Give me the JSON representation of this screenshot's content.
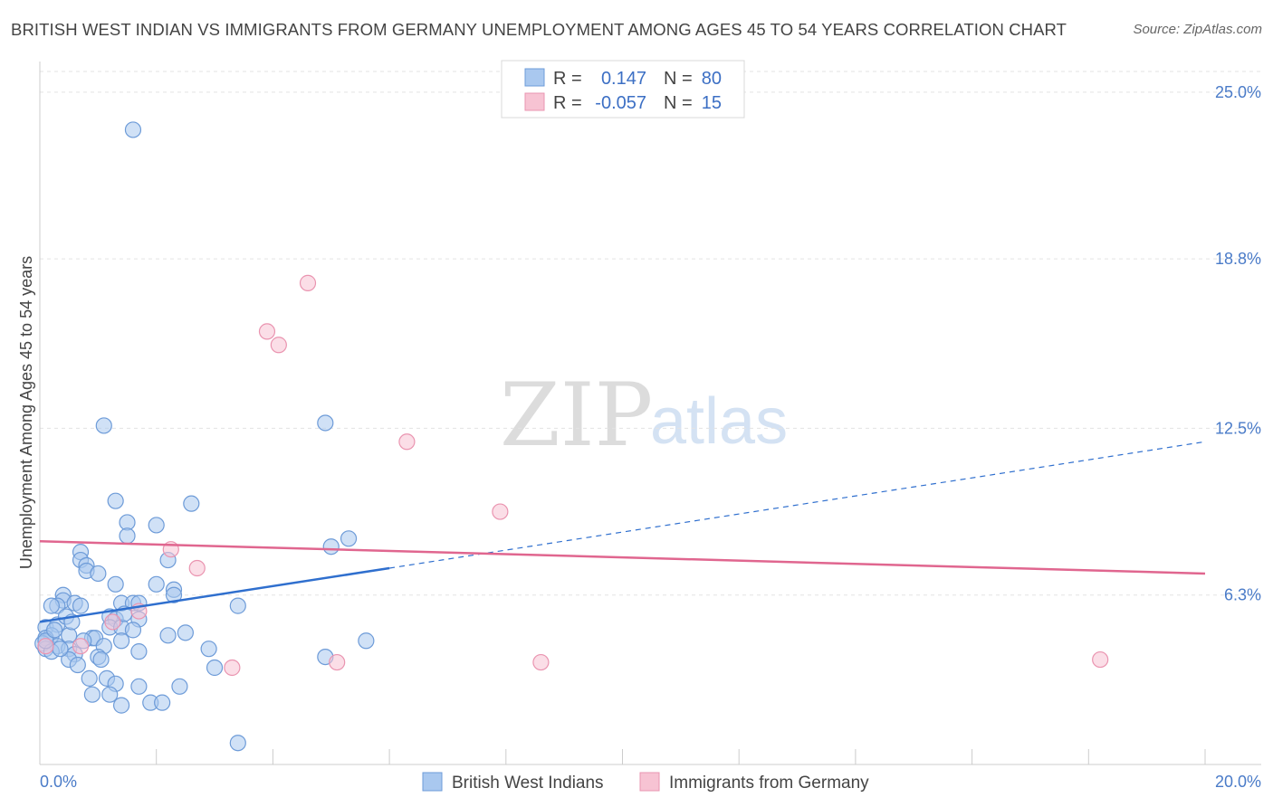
{
  "header": {
    "title": "BRITISH WEST INDIAN VS IMMIGRANTS FROM GERMANY UNEMPLOYMENT AMONG AGES 45 TO 54 YEARS CORRELATION CHART",
    "source": "Source: ZipAtlas.com"
  },
  "watermark": {
    "zip": "ZIP",
    "atlas": "atlas"
  },
  "legend": {
    "rows": [
      {
        "r_label": "R =",
        "r_value": "0.147",
        "n_label": "N =",
        "n_value": "80"
      },
      {
        "r_label": "R =",
        "r_value": "-0.057",
        "n_label": "N =",
        "n_value": "15"
      }
    ]
  },
  "chart_data": {
    "type": "scatter",
    "title": "BRITISH WEST INDIAN VS IMMIGRANTS FROM GERMANY UNEMPLOYMENT AMONG AGES 45 TO 54 YEARS CORRELATION CHART",
    "xlabel": "",
    "ylabel": "Unemployment Among Ages 45 to 54 years",
    "xlim": [
      0,
      20
    ],
    "ylim": [
      0,
      25.6
    ],
    "x_tick_labels": [
      "0.0%",
      "20.0%"
    ],
    "y_ticks": [
      6.3,
      12.5,
      18.8,
      25.0
    ],
    "y_tick_labels": [
      "6.3%",
      "12.5%",
      "18.8%",
      "25.0%"
    ],
    "grid": true,
    "legend_position": "bottom",
    "colors": {
      "blue_fill": "#a9c8ef",
      "blue_stroke": "#6d9bd8",
      "blue_line": "#2f6fce",
      "pink_fill": "#f7c3d3",
      "pink_stroke": "#ea94b0",
      "pink_line": "#e0668f"
    },
    "series": [
      {
        "name": "British West Indians",
        "color": "blue",
        "points": [
          [
            1.6,
            23.6
          ],
          [
            1.1,
            12.6
          ],
          [
            4.9,
            12.7
          ],
          [
            1.3,
            9.8
          ],
          [
            2.6,
            9.7
          ],
          [
            1.5,
            9.0
          ],
          [
            2.0,
            8.9
          ],
          [
            1.5,
            8.5
          ],
          [
            5.3,
            8.4
          ],
          [
            5.0,
            8.1
          ],
          [
            0.7,
            7.9
          ],
          [
            0.7,
            7.6
          ],
          [
            0.8,
            7.4
          ],
          [
            0.8,
            7.2
          ],
          [
            1.0,
            7.1
          ],
          [
            2.2,
            7.6
          ],
          [
            1.3,
            6.7
          ],
          [
            2.0,
            6.7
          ],
          [
            2.3,
            6.5
          ],
          [
            2.3,
            6.3
          ],
          [
            0.4,
            6.3
          ],
          [
            0.4,
            6.1
          ],
          [
            0.6,
            6.0
          ],
          [
            0.3,
            5.9
          ],
          [
            0.7,
            5.9
          ],
          [
            0.2,
            5.9
          ],
          [
            1.4,
            6.0
          ],
          [
            1.6,
            6.0
          ],
          [
            1.7,
            6.0
          ],
          [
            3.4,
            5.9
          ],
          [
            1.2,
            5.5
          ],
          [
            1.3,
            5.4
          ],
          [
            1.7,
            5.4
          ],
          [
            1.2,
            5.1
          ],
          [
            0.1,
            5.1
          ],
          [
            0.3,
            5.2
          ],
          [
            1.4,
            5.1
          ],
          [
            0.2,
            4.8
          ],
          [
            0.5,
            4.8
          ],
          [
            0.9,
            4.7
          ],
          [
            0.95,
            4.7
          ],
          [
            0.1,
            4.7
          ],
          [
            1.4,
            4.6
          ],
          [
            2.2,
            4.8
          ],
          [
            5.6,
            4.6
          ],
          [
            0.05,
            4.5
          ],
          [
            0.3,
            4.4
          ],
          [
            0.5,
            4.3
          ],
          [
            1.1,
            4.4
          ],
          [
            2.9,
            4.3
          ],
          [
            0.1,
            4.3
          ],
          [
            0.2,
            4.2
          ],
          [
            0.6,
            4.1
          ],
          [
            1.7,
            4.2
          ],
          [
            4.9,
            4.0
          ],
          [
            0.5,
            3.9
          ],
          [
            1.0,
            4.0
          ],
          [
            1.05,
            3.9
          ],
          [
            0.65,
            3.7
          ],
          [
            3.0,
            3.6
          ],
          [
            0.85,
            3.2
          ],
          [
            1.15,
            3.2
          ],
          [
            1.3,
            3.0
          ],
          [
            1.7,
            2.9
          ],
          [
            2.4,
            2.9
          ],
          [
            0.9,
            2.6
          ],
          [
            1.2,
            2.6
          ],
          [
            1.9,
            2.3
          ],
          [
            2.1,
            2.3
          ],
          [
            1.4,
            2.2
          ],
          [
            3.4,
            0.8
          ],
          [
            0.1,
            4.6
          ],
          [
            0.25,
            5.0
          ],
          [
            0.45,
            5.5
          ],
          [
            0.55,
            5.3
          ],
          [
            1.45,
            5.6
          ],
          [
            0.35,
            4.3
          ],
          [
            0.75,
            4.6
          ],
          [
            1.6,
            5.0
          ],
          [
            2.5,
            4.9
          ]
        ],
        "trend": {
          "x": [
            0,
            6
          ],
          "y": [
            5.3,
            7.3
          ],
          "dashed_extension": {
            "x": [
              6,
              20
            ],
            "y": [
              7.3,
              12.0
            ]
          }
        }
      },
      {
        "name": "Immigrants from Germany",
        "color": "pink",
        "points": [
          [
            4.6,
            17.9
          ],
          [
            3.9,
            16.1
          ],
          [
            4.1,
            15.6
          ],
          [
            6.3,
            12.0
          ],
          [
            7.9,
            9.4
          ],
          [
            2.25,
            8.0
          ],
          [
            2.7,
            7.3
          ],
          [
            1.7,
            5.7
          ],
          [
            1.25,
            5.3
          ],
          [
            0.7,
            4.4
          ],
          [
            0.1,
            4.4
          ],
          [
            3.3,
            3.6
          ],
          [
            5.1,
            3.8
          ],
          [
            8.6,
            3.8
          ],
          [
            18.2,
            3.9
          ]
        ],
        "trend": {
          "x": [
            0,
            20
          ],
          "y": [
            8.3,
            7.1
          ]
        }
      }
    ]
  },
  "bottom_legend": {
    "items": [
      {
        "label": "British West Indians"
      },
      {
        "label": "Immigrants from Germany"
      }
    ]
  }
}
